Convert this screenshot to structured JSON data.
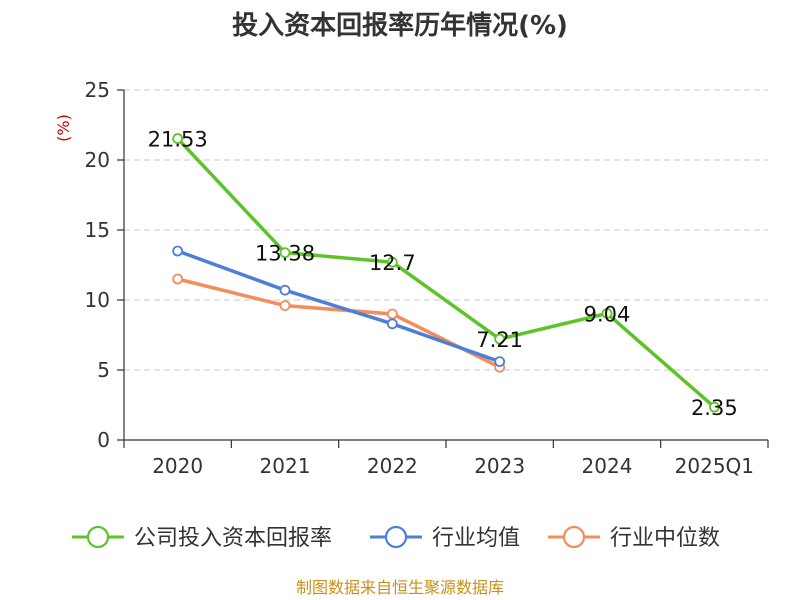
{
  "chart_data": {
    "type": "line",
    "title": "投入资本回报率历年情况(%)",
    "unit_label": "(%)",
    "categories": [
      "2020",
      "2021",
      "2022",
      "2023",
      "2024",
      "2025Q1"
    ],
    "ylim": [
      0,
      25
    ],
    "yticks": [
      0,
      5,
      10,
      15,
      20,
      25
    ],
    "grid": true,
    "legend_position": "bottom",
    "series": [
      {
        "name": "公司投入资本回报率",
        "color": "#5cc328",
        "values": [
          21.53,
          13.38,
          12.7,
          7.21,
          9.04,
          2.35
        ],
        "labels": [
          "21.53",
          "13.38",
          "12.7",
          "7.21",
          "9.04",
          "2.35"
        ]
      },
      {
        "name": "行业均值",
        "color": "#4e7fd6",
        "values": [
          13.5,
          10.7,
          8.3,
          5.6,
          null,
          null
        ]
      },
      {
        "name": "行业中位数",
        "color": "#f48d5c",
        "values": [
          11.5,
          9.6,
          9.0,
          5.2,
          null,
          null
        ]
      }
    ],
    "source": "制图数据来自恒生聚源数据库"
  }
}
